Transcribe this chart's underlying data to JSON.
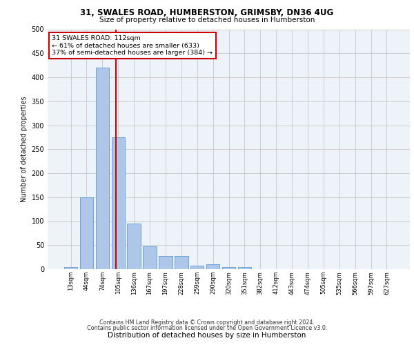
{
  "title1": "31, SWALES ROAD, HUMBERSTON, GRIMSBY, DN36 4UG",
  "title2": "Size of property relative to detached houses in Humberston",
  "xlabel": "Distribution of detached houses by size in Humberston",
  "ylabel": "Number of detached properties",
  "footer1": "Contains HM Land Registry data © Crown copyright and database right 2024.",
  "footer2": "Contains public sector information licensed under the Open Government Licence v3.0.",
  "annotation_line1": "31 SWALES ROAD: 112sqm",
  "annotation_line2": "← 61% of detached houses are smaller (633)",
  "annotation_line3": "37% of semi-detached houses are larger (384) →",
  "bar_labels": [
    "13sqm",
    "44sqm",
    "74sqm",
    "105sqm",
    "136sqm",
    "167sqm",
    "197sqm",
    "228sqm",
    "259sqm",
    "290sqm",
    "320sqm",
    "351sqm",
    "382sqm",
    "412sqm",
    "443sqm",
    "474sqm",
    "505sqm",
    "535sqm",
    "566sqm",
    "597sqm",
    "627sqm"
  ],
  "bar_values": [
    5,
    150,
    420,
    275,
    95,
    48,
    28,
    28,
    7,
    10,
    5,
    4,
    0,
    0,
    0,
    0,
    0,
    0,
    0,
    0,
    0
  ],
  "bar_color": "#aec6e8",
  "bar_edge_color": "#5b9bd5",
  "vline_x": 2.85,
  "vline_color": "#cc0000",
  "annotation_box_color": "#cc0000",
  "ylim": [
    0,
    500
  ],
  "yticks": [
    0,
    50,
    100,
    150,
    200,
    250,
    300,
    350,
    400,
    450,
    500
  ],
  "grid_color": "#cccccc",
  "bg_color": "#eef2f9"
}
